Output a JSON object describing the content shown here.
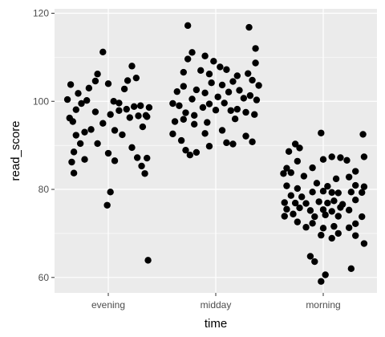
{
  "chart_data": {
    "type": "scatter",
    "jitter": true,
    "xlabel": "time",
    "ylabel": "read_score",
    "categories": [
      "evening",
      "midday",
      "morning"
    ],
    "ylim": [
      56.5,
      121
    ],
    "yticks": [
      60,
      80,
      100,
      120
    ],
    "grid": true,
    "point_color": "#000000",
    "panel_color": "#ebebeb",
    "grid_color": "#ffffff",
    "points": [
      {
        "category": "evening",
        "j": -0.38,
        "y": 100.4
      },
      {
        "category": "evening",
        "j": -0.35,
        "y": 103.8
      },
      {
        "category": "evening",
        "j": -0.3,
        "y": 98.1
      },
      {
        "category": "evening",
        "j": -0.33,
        "y": 95.4
      },
      {
        "category": "evening",
        "j": -0.25,
        "y": 99.5
      },
      {
        "category": "evening",
        "j": -0.28,
        "y": 101.8
      },
      {
        "category": "evening",
        "j": -0.2,
        "y": 100.2
      },
      {
        "category": "evening",
        "j": -0.18,
        "y": 103.0
      },
      {
        "category": "evening",
        "j": -0.12,
        "y": 104.6
      },
      {
        "category": "evening",
        "j": -0.1,
        "y": 106.2
      },
      {
        "category": "evening",
        "j": -0.05,
        "y": 111.2
      },
      {
        "category": "evening",
        "j": 0.0,
        "y": 104.0
      },
      {
        "category": "evening",
        "j": 0.05,
        "y": 100.0
      },
      {
        "category": "evening",
        "j": 0.1,
        "y": 99.6
      },
      {
        "category": "evening",
        "j": 0.15,
        "y": 102.8
      },
      {
        "category": "evening",
        "j": 0.18,
        "y": 104.7
      },
      {
        "category": "evening",
        "j": 0.22,
        "y": 108.0
      },
      {
        "category": "evening",
        "j": 0.26,
        "y": 105.3
      },
      {
        "category": "evening",
        "j": 0.3,
        "y": 99.0
      },
      {
        "category": "evening",
        "j": 0.35,
        "y": 96.8
      },
      {
        "category": "evening",
        "j": -0.36,
        "y": 96.2
      },
      {
        "category": "evening",
        "j": -0.3,
        "y": 92.3
      },
      {
        "category": "evening",
        "j": -0.26,
        "y": 90.4
      },
      {
        "category": "evening",
        "j": -0.32,
        "y": 88.5
      },
      {
        "category": "evening",
        "j": -0.34,
        "y": 86.2
      },
      {
        "category": "evening",
        "j": -0.32,
        "y": 83.7
      },
      {
        "category": "evening",
        "j": -0.22,
        "y": 93.0
      },
      {
        "category": "evening",
        "j": -0.16,
        "y": 93.6
      },
      {
        "category": "evening",
        "j": -0.12,
        "y": 97.6
      },
      {
        "category": "evening",
        "j": -0.1,
        "y": 90.4
      },
      {
        "category": "evening",
        "j": -0.05,
        "y": 95.0
      },
      {
        "category": "evening",
        "j": 0.02,
        "y": 97.0
      },
      {
        "category": "evening",
        "j": 0.06,
        "y": 93.4
      },
      {
        "category": "evening",
        "j": 0.1,
        "y": 97.9
      },
      {
        "category": "evening",
        "j": 0.13,
        "y": 92.4
      },
      {
        "category": "evening",
        "j": 0.17,
        "y": 98.2
      },
      {
        "category": "evening",
        "j": 0.2,
        "y": 96.3
      },
      {
        "category": "evening",
        "j": 0.24,
        "y": 98.8
      },
      {
        "category": "evening",
        "j": 0.28,
        "y": 96.7
      },
      {
        "category": "evening",
        "j": 0.32,
        "y": 94.2
      },
      {
        "category": "evening",
        "j": 0.36,
        "y": 96.5
      },
      {
        "category": "evening",
        "j": 0.38,
        "y": 98.6
      },
      {
        "category": "evening",
        "j": 0.0,
        "y": 88.2
      },
      {
        "category": "evening",
        "j": 0.06,
        "y": 86.5
      },
      {
        "category": "evening",
        "j": -0.22,
        "y": 86.8
      },
      {
        "category": "evening",
        "j": 0.22,
        "y": 89.5
      },
      {
        "category": "evening",
        "j": 0.27,
        "y": 87.2
      },
      {
        "category": "evening",
        "j": 0.31,
        "y": 85.3
      },
      {
        "category": "evening",
        "j": 0.34,
        "y": 83.6
      },
      {
        "category": "evening",
        "j": 0.36,
        "y": 87.1
      },
      {
        "category": "evening",
        "j": 0.02,
        "y": 79.4
      },
      {
        "category": "evening",
        "j": -0.01,
        "y": 76.4
      },
      {
        "category": "evening",
        "j": 0.37,
        "y": 63.9
      },
      {
        "category": "midday",
        "j": -0.26,
        "y": 117.2
      },
      {
        "category": "midday",
        "j": 0.31,
        "y": 116.8
      },
      {
        "category": "midday",
        "j": -0.22,
        "y": 111.1
      },
      {
        "category": "midday",
        "j": 0.37,
        "y": 112.0
      },
      {
        "category": "midday",
        "j": -0.26,
        "y": 109.6
      },
      {
        "category": "midday",
        "j": -0.1,
        "y": 110.3
      },
      {
        "category": "midday",
        "j": -0.02,
        "y": 109.1
      },
      {
        "category": "midday",
        "j": 0.04,
        "y": 107.8
      },
      {
        "category": "midday",
        "j": 0.37,
        "y": 108.7
      },
      {
        "category": "midday",
        "j": -0.3,
        "y": 106.6
      },
      {
        "category": "midday",
        "j": -0.14,
        "y": 107.0
      },
      {
        "category": "midday",
        "j": -0.06,
        "y": 106.2
      },
      {
        "category": "midday",
        "j": 0.1,
        "y": 107.2
      },
      {
        "category": "midday",
        "j": 0.2,
        "y": 105.8
      },
      {
        "category": "midday",
        "j": 0.3,
        "y": 106.3
      },
      {
        "category": "midday",
        "j": 0.34,
        "y": 104.8
      },
      {
        "category": "midday",
        "j": 0.4,
        "y": 103.6
      },
      {
        "category": "midday",
        "j": -0.36,
        "y": 102.2
      },
      {
        "category": "midday",
        "j": -0.3,
        "y": 103.4
      },
      {
        "category": "midday",
        "j": -0.22,
        "y": 100.5
      },
      {
        "category": "midday",
        "j": -0.18,
        "y": 102.6
      },
      {
        "category": "midday",
        "j": -0.1,
        "y": 101.9
      },
      {
        "category": "midday",
        "j": -0.04,
        "y": 104.2
      },
      {
        "category": "midday",
        "j": 0.02,
        "y": 101.0
      },
      {
        "category": "midday",
        "j": 0.06,
        "y": 103.7
      },
      {
        "category": "midday",
        "j": 0.12,
        "y": 102.1
      },
      {
        "category": "midday",
        "j": 0.16,
        "y": 104.5
      },
      {
        "category": "midday",
        "j": 0.22,
        "y": 102.5
      },
      {
        "category": "midday",
        "j": 0.26,
        "y": 100.7
      },
      {
        "category": "midday",
        "j": 0.32,
        "y": 101.3
      },
      {
        "category": "midday",
        "j": 0.38,
        "y": 100.3
      },
      {
        "category": "midday",
        "j": -0.4,
        "y": 99.5
      },
      {
        "category": "midday",
        "j": -0.34,
        "y": 99.0
      },
      {
        "category": "midday",
        "j": -0.28,
        "y": 97.4
      },
      {
        "category": "midday",
        "j": -0.2,
        "y": 96.8
      },
      {
        "category": "midday",
        "j": -0.12,
        "y": 98.6
      },
      {
        "category": "midday",
        "j": -0.06,
        "y": 99.4
      },
      {
        "category": "midday",
        "j": 0.0,
        "y": 98.0
      },
      {
        "category": "midday",
        "j": 0.08,
        "y": 99.6
      },
      {
        "category": "midday",
        "j": 0.14,
        "y": 97.9
      },
      {
        "category": "midday",
        "j": 0.2,
        "y": 98.2
      },
      {
        "category": "midday",
        "j": 0.28,
        "y": 97.5
      },
      {
        "category": "midday",
        "j": 0.36,
        "y": 97.0
      },
      {
        "category": "midday",
        "j": -0.38,
        "y": 95.4
      },
      {
        "category": "midday",
        "j": -0.3,
        "y": 95.9
      },
      {
        "category": "midday",
        "j": -0.2,
        "y": 94.8
      },
      {
        "category": "midday",
        "j": -0.08,
        "y": 95.2
      },
      {
        "category": "midday",
        "j": 0.06,
        "y": 93.4
      },
      {
        "category": "midday",
        "j": 0.18,
        "y": 96.0
      },
      {
        "category": "midday",
        "j": -0.4,
        "y": 92.6
      },
      {
        "category": "midday",
        "j": -0.1,
        "y": 92.7
      },
      {
        "category": "midday",
        "j": 0.28,
        "y": 92.1
      },
      {
        "category": "midday",
        "j": -0.32,
        "y": 91.1
      },
      {
        "category": "midday",
        "j": 0.16,
        "y": 90.3
      },
      {
        "category": "midday",
        "j": 0.34,
        "y": 90.8
      },
      {
        "category": "midday",
        "j": -0.06,
        "y": 89.8
      },
      {
        "category": "midday",
        "j": 0.1,
        "y": 90.6
      },
      {
        "category": "midday",
        "j": -0.28,
        "y": 88.9
      },
      {
        "category": "midday",
        "j": -0.24,
        "y": 87.8
      },
      {
        "category": "midday",
        "j": -0.18,
        "y": 88.4
      },
      {
        "category": "morning",
        "j": -0.26,
        "y": 90.3
      },
      {
        "category": "morning",
        "j": -0.22,
        "y": 89.4
      },
      {
        "category": "morning",
        "j": -0.02,
        "y": 92.8
      },
      {
        "category": "morning",
        "j": 0.37,
        "y": 92.5
      },
      {
        "category": "morning",
        "j": -0.32,
        "y": 88.6
      },
      {
        "category": "morning",
        "j": 0.08,
        "y": 87.4
      },
      {
        "category": "morning",
        "j": 0.16,
        "y": 87.2
      },
      {
        "category": "morning",
        "j": -0.24,
        "y": 86.4
      },
      {
        "category": "morning",
        "j": 0.0,
        "y": 86.8
      },
      {
        "category": "morning",
        "j": 0.22,
        "y": 86.6
      },
      {
        "category": "morning",
        "j": 0.38,
        "y": 87.4
      },
      {
        "category": "morning",
        "j": -0.34,
        "y": 84.8
      },
      {
        "category": "morning",
        "j": -0.1,
        "y": 84.9
      },
      {
        "category": "morning",
        "j": 0.3,
        "y": 84.1
      },
      {
        "category": "morning",
        "j": -0.37,
        "y": 83.6
      },
      {
        "category": "morning",
        "j": -0.3,
        "y": 83.8
      },
      {
        "category": "morning",
        "j": -0.18,
        "y": 83.0
      },
      {
        "category": "morning",
        "j": 0.12,
        "y": 82.4
      },
      {
        "category": "morning",
        "j": 0.24,
        "y": 82.8
      },
      {
        "category": "morning",
        "j": -0.06,
        "y": 81.4
      },
      {
        "category": "morning",
        "j": 0.04,
        "y": 80.7
      },
      {
        "category": "morning",
        "j": -0.34,
        "y": 80.8
      },
      {
        "category": "morning",
        "j": -0.24,
        "y": 80.2
      },
      {
        "category": "morning",
        "j": 0.3,
        "y": 80.9
      },
      {
        "category": "morning",
        "j": 0.38,
        "y": 80.6
      },
      {
        "category": "morning",
        "j": -0.1,
        "y": 79.4
      },
      {
        "category": "morning",
        "j": 0.0,
        "y": 79.6
      },
      {
        "category": "morning",
        "j": 0.08,
        "y": 79.3
      },
      {
        "category": "morning",
        "j": 0.14,
        "y": 79.2
      },
      {
        "category": "morning",
        "j": 0.26,
        "y": 79.4
      },
      {
        "category": "morning",
        "j": 0.36,
        "y": 79.3
      },
      {
        "category": "morning",
        "j": -0.3,
        "y": 78.6
      },
      {
        "category": "morning",
        "j": -0.2,
        "y": 78.3
      },
      {
        "category": "morning",
        "j": -0.36,
        "y": 77.0
      },
      {
        "category": "morning",
        "j": -0.26,
        "y": 76.9
      },
      {
        "category": "morning",
        "j": -0.16,
        "y": 76.8
      },
      {
        "category": "morning",
        "j": -0.04,
        "y": 77.2
      },
      {
        "category": "morning",
        "j": 0.04,
        "y": 76.9
      },
      {
        "category": "morning",
        "j": 0.1,
        "y": 77.4
      },
      {
        "category": "morning",
        "j": 0.18,
        "y": 76.6
      },
      {
        "category": "morning",
        "j": 0.3,
        "y": 77.6
      },
      {
        "category": "morning",
        "j": -0.34,
        "y": 75.5
      },
      {
        "category": "morning",
        "j": -0.22,
        "y": 75.8
      },
      {
        "category": "morning",
        "j": -0.12,
        "y": 75.2
      },
      {
        "category": "morning",
        "j": 0.0,
        "y": 75.4
      },
      {
        "category": "morning",
        "j": 0.08,
        "y": 75.0
      },
      {
        "category": "morning",
        "j": 0.16,
        "y": 75.9
      },
      {
        "category": "morning",
        "j": 0.24,
        "y": 75.3
      },
      {
        "category": "morning",
        "j": -0.36,
        "y": 73.9
      },
      {
        "category": "morning",
        "j": -0.28,
        "y": 74.4
      },
      {
        "category": "morning",
        "j": -0.08,
        "y": 73.8
      },
      {
        "category": "morning",
        "j": 0.02,
        "y": 74.2
      },
      {
        "category": "morning",
        "j": 0.14,
        "y": 73.9
      },
      {
        "category": "morning",
        "j": 0.36,
        "y": 73.8
      },
      {
        "category": "morning",
        "j": -0.24,
        "y": 72.6
      },
      {
        "category": "morning",
        "j": -0.1,
        "y": 72.3
      },
      {
        "category": "morning",
        "j": -0.16,
        "y": 71.4
      },
      {
        "category": "morning",
        "j": 0.0,
        "y": 71.2
      },
      {
        "category": "morning",
        "j": 0.1,
        "y": 71.6
      },
      {
        "category": "morning",
        "j": 0.24,
        "y": 71.3
      },
      {
        "category": "morning",
        "j": 0.3,
        "y": 72.2
      },
      {
        "category": "morning",
        "j": -0.02,
        "y": 69.6
      },
      {
        "category": "morning",
        "j": 0.08,
        "y": 68.9
      },
      {
        "category": "morning",
        "j": 0.14,
        "y": 70.0
      },
      {
        "category": "morning",
        "j": 0.3,
        "y": 69.5
      },
      {
        "category": "morning",
        "j": 0.38,
        "y": 67.7
      },
      {
        "category": "morning",
        "j": -0.12,
        "y": 64.8
      },
      {
        "category": "morning",
        "j": -0.08,
        "y": 63.6
      },
      {
        "category": "morning",
        "j": 0.26,
        "y": 62.0
      },
      {
        "category": "morning",
        "j": 0.02,
        "y": 60.6
      },
      {
        "category": "morning",
        "j": -0.02,
        "y": 59.1
      }
    ]
  }
}
